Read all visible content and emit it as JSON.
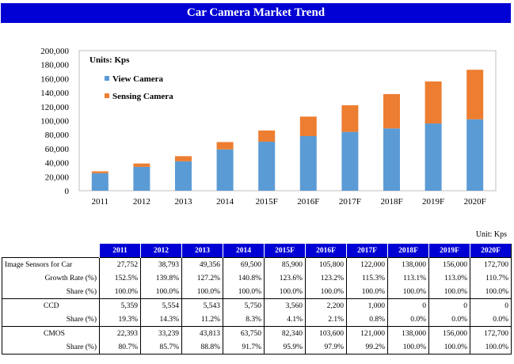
{
  "chart_data": {
    "type": "bar",
    "stacked": true,
    "title": "Car Camera Market Trend",
    "unit_note": "Units: Kps",
    "categories": [
      "2011",
      "2012",
      "2013",
      "2014",
      "2015F",
      "2016F",
      "2017F",
      "2018F",
      "2019F",
      "2020F"
    ],
    "series": [
      {
        "name": "View Camera",
        "color": "#5b9bd5",
        "values": [
          25000,
          34000,
          42000,
          59000,
          70000,
          78000,
          84000,
          89000,
          96000,
          102000
        ]
      },
      {
        "name": "Sensing Camera",
        "color": "#ed7d31",
        "values": [
          2700,
          4800,
          7300,
          10500,
          16000,
          27800,
          38000,
          49000,
          60000,
          70700
        ]
      }
    ],
    "ylim": [
      0,
      200000
    ],
    "yticks": [
      "0",
      "20,000",
      "40,000",
      "60,000",
      "80,000",
      "100,000",
      "120,000",
      "140,000",
      "160,000",
      "180,000",
      "200,000"
    ],
    "legend_position": "top-left",
    "grid": false
  },
  "table": {
    "unit": "Unit: Kps",
    "columns": [
      "2011",
      "2012",
      "2013",
      "2014",
      "2015F",
      "2016F",
      "2017F",
      "2018F",
      "2019F",
      "2020F"
    ],
    "rows": [
      {
        "label": "Image Sensors for Car",
        "values": [
          "27,752",
          "38,793",
          "49,356",
          "69,500",
          "85,900",
          "105,800",
          "122,000",
          "138,000",
          "156,000",
          "172,700"
        ]
      },
      {
        "label": "Growth Rate (%)",
        "values": [
          "152.5%",
          "139.8%",
          "127.2%",
          "140.8%",
          "123.6%",
          "123.2%",
          "115.3%",
          "113.1%",
          "113.0%",
          "110.7%"
        ]
      },
      {
        "label": "Share (%)",
        "values": [
          "100.0%",
          "100.0%",
          "100.0%",
          "100.0%",
          "100.0%",
          "100.0%",
          "100.0%",
          "100.0%",
          "100.0%",
          "100.0%"
        ]
      },
      {
        "label": "CCD",
        "values": [
          "5,359",
          "5,554",
          "5,543",
          "5,750",
          "3,560",
          "2,200",
          "1,000",
          "0",
          "0",
          "0"
        ]
      },
      {
        "label": "Share (%)",
        "values": [
          "19.3%",
          "14.3%",
          "11.2%",
          "8.3%",
          "4.1%",
          "2.1%",
          "0.8%",
          "0.0%",
          "0.0%",
          "0.0%"
        ]
      },
      {
        "label": "CMOS",
        "values": [
          "22,393",
          "33,239",
          "43,813",
          "63,750",
          "82,340",
          "103,600",
          "121,000",
          "138,000",
          "156,000",
          "172,700"
        ]
      },
      {
        "label": "Share (%)",
        "values": [
          "80.7%",
          "85.7%",
          "88.8%",
          "91.7%",
          "95.9%",
          "97.9%",
          "99.2%",
          "100.0%",
          "100.0%",
          "100.0%"
        ]
      }
    ]
  }
}
